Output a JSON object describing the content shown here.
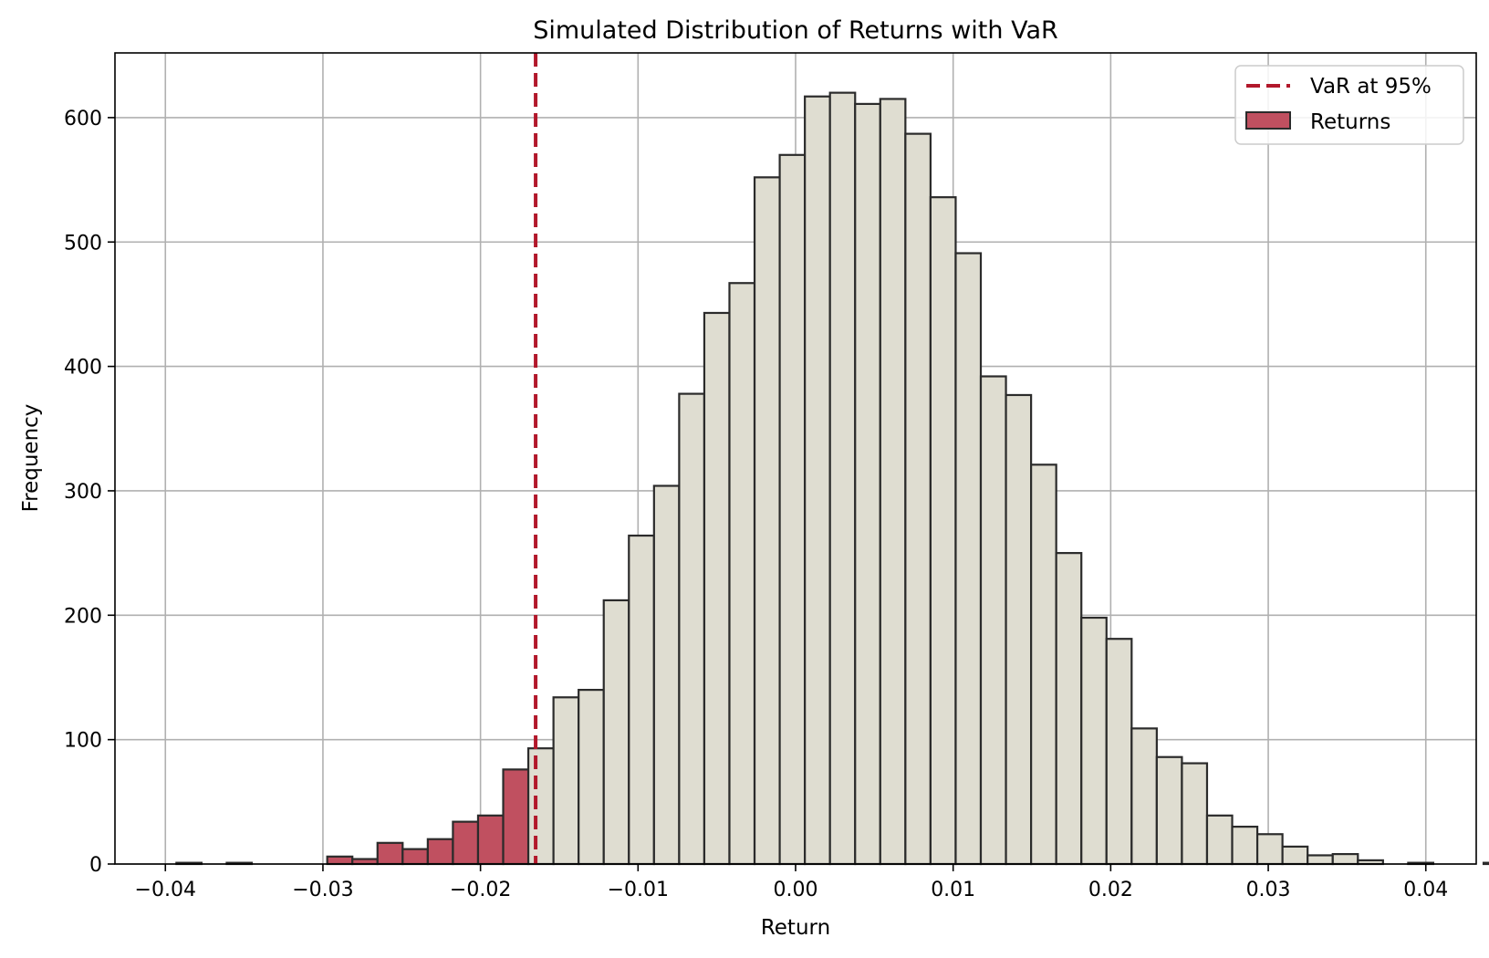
{
  "chart_data": {
    "type": "histogram",
    "title": "Simulated Distribution of Returns with VaR",
    "xlabel": "Return",
    "ylabel": "Frequency",
    "xlim": [
      -0.0432,
      0.0432
    ],
    "ylim": [
      0,
      652
    ],
    "x_ticks": [
      -0.04,
      -0.03,
      -0.02,
      -0.01,
      0.0,
      0.01,
      0.02,
      0.03,
      0.04
    ],
    "x_tick_labels": [
      "−0.04",
      "−0.03",
      "−0.02",
      "−0.01",
      "0.00",
      "0.01",
      "0.02",
      "0.03",
      "0.04"
    ],
    "y_ticks": [
      0,
      100,
      200,
      300,
      400,
      500,
      600
    ],
    "y_tick_labels": [
      "0",
      "100",
      "200",
      "300",
      "400",
      "500",
      "600"
    ],
    "grid": true,
    "legend_placement": "top-right",
    "var_line": {
      "label": "VaR at 95%",
      "x": -0.0165,
      "color": "#b2182b",
      "style": "dashed"
    },
    "series": [
      {
        "name": "Returns",
        "tail_color": "#c05060",
        "body_color": "#dfddd1",
        "edge_color": "#2b2b2b"
      }
    ],
    "bin_start": -0.0393,
    "bin_width": 0.0015955,
    "counts": [
      1,
      0,
      1,
      0,
      0,
      0,
      6,
      4,
      17,
      12,
      20,
      34,
      39,
      76,
      93,
      134,
      140,
      212,
      264,
      304,
      378,
      443,
      467,
      552,
      570,
      617,
      620,
      611,
      615,
      587,
      536,
      491,
      392,
      377,
      321,
      250,
      198,
      181,
      109,
      86,
      81,
      39,
      30,
      24,
      14,
      7,
      8,
      3,
      0,
      1,
      0,
      0,
      1
    ]
  }
}
